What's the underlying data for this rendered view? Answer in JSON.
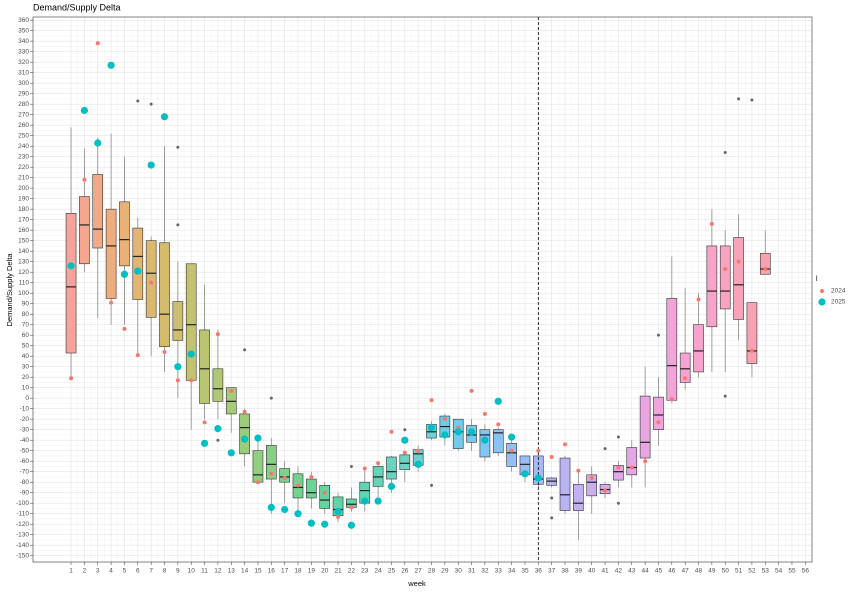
{
  "chart_data": {
    "type": "box",
    "title": "Demand/Supply Delta",
    "x_label": "week",
    "y_label": "Demand/Supply Delta",
    "legend_title": "l",
    "legend_position": "right",
    "grid": true,
    "reference_line_x": 36,
    "x": [
      1,
      2,
      3,
      4,
      5,
      6,
      7,
      8,
      9,
      10,
      11,
      12,
      13,
      14,
      15,
      16,
      17,
      18,
      19,
      20,
      21,
      22,
      23,
      24,
      25,
      26,
      27,
      28,
      29,
      30,
      31,
      32,
      33,
      34,
      35,
      36,
      37,
      38,
      39,
      40,
      41,
      42,
      43,
      44,
      45,
      46,
      47,
      48,
      49,
      50,
      51,
      52,
      53
    ],
    "xlim": [
      -1.85,
      56.5
    ],
    "xticks": [
      1,
      2,
      3,
      4,
      5,
      6,
      7,
      8,
      9,
      10,
      11,
      12,
      13,
      14,
      15,
      16,
      17,
      18,
      19,
      20,
      21,
      22,
      23,
      24,
      25,
      26,
      27,
      28,
      29,
      30,
      31,
      32,
      33,
      34,
      35,
      36,
      37,
      38,
      39,
      40,
      41,
      42,
      43,
      44,
      45,
      46,
      47,
      48,
      49,
      50,
      51,
      52,
      53,
      54,
      55,
      56
    ],
    "ylim": [
      -156,
      363
    ],
    "yticks": [
      -150,
      -140,
      -130,
      -120,
      -110,
      -100,
      -90,
      -80,
      -70,
      -60,
      -50,
      -40,
      -30,
      -20,
      -10,
      0,
      10,
      20,
      30,
      40,
      50,
      60,
      70,
      80,
      90,
      100,
      110,
      120,
      130,
      140,
      150,
      160,
      170,
      180,
      190,
      200,
      210,
      220,
      230,
      240,
      250,
      260,
      270,
      280,
      290,
      300,
      310,
      320,
      330,
      340,
      350,
      360
    ],
    "box": {
      "low": [
        20,
        120,
        76,
        70,
        70,
        40,
        40,
        25,
        0,
        -30,
        -20,
        -20,
        -33,
        -65,
        -80,
        -110,
        -100,
        -110,
        -105,
        -110,
        -118,
        -108,
        -108,
        -95,
        -90,
        -80,
        -70,
        -40,
        -45,
        -50,
        -50,
        -60,
        -55,
        -70,
        -80,
        -85,
        -85,
        -110,
        -135,
        -110,
        -95,
        -85,
        -85,
        -85,
        -45,
        -5,
        8,
        20,
        25,
        25,
        55,
        20,
        118
      ],
      "q1": [
        43,
        128,
        143,
        95,
        126,
        94,
        77,
        49,
        55,
        17,
        -5,
        -3,
        -15,
        -53,
        -80,
        -77,
        -80,
        -95,
        -95,
        -105,
        -112,
        -104,
        -100,
        -84,
        -77,
        -68,
        -64,
        -38,
        -37,
        -48,
        -42,
        -56,
        -52,
        -65,
        -73,
        -82,
        -83,
        -107,
        -107,
        -93,
        -91,
        -78,
        -73,
        -57,
        -30,
        -2,
        15,
        25,
        68,
        85,
        75,
        33,
        118
      ],
      "median": [
        106,
        165,
        161,
        145,
        151,
        135,
        119,
        80,
        65,
        70,
        28,
        9,
        -3,
        -28,
        -73,
        -63,
        -75,
        -85,
        -90,
        -97,
        -106,
        -101,
        -88,
        -75,
        -70,
        -62,
        -53,
        -32,
        -27,
        -32,
        -35,
        -35,
        -33,
        -52,
        -63,
        -77,
        -79,
        -92,
        -100,
        -80,
        -87,
        -70,
        -66,
        -42,
        -16,
        31,
        28,
        45,
        102,
        102,
        108,
        45,
        123
      ],
      "q3": [
        176,
        192,
        213,
        180,
        187,
        162,
        150,
        148,
        92,
        128,
        65,
        28,
        10,
        -15,
        -50,
        -45,
        -67,
        -72,
        -77,
        -83,
        -94,
        -96,
        -80,
        -65,
        -56,
        -54,
        -49,
        -25,
        -17,
        -20,
        -26,
        -30,
        -30,
        -43,
        -55,
        -55,
        -76,
        -57,
        -82,
        -73,
        -82,
        -64,
        -47,
        2,
        1,
        95,
        43,
        70,
        145,
        145,
        153,
        91,
        138
      ],
      "high": [
        258,
        238,
        248,
        252,
        230,
        172,
        154,
        240,
        130,
        128,
        108,
        65,
        10,
        -10,
        -40,
        -38,
        -60,
        -65,
        -70,
        -80,
        -90,
        -85,
        -65,
        -60,
        -55,
        -50,
        -45,
        -22,
        -15,
        -20,
        -20,
        -25,
        -28,
        -40,
        -55,
        -50,
        -75,
        -55,
        -70,
        -65,
        -80,
        -60,
        -40,
        30,
        20,
        135,
        105,
        100,
        180,
        160,
        175,
        91,
        160
      ],
      "outliers": [
        [],
        [],
        [],
        [],
        [],
        [
          283
        ],
        [
          280
        ],
        [],
        [
          239,
          165
        ],
        [],
        [],
        [
          -40
        ],
        [],
        [
          46
        ],
        [],
        [
          0
        ],
        [],
        [],
        [],
        [],
        [],
        [
          -65
        ],
        [],
        [],
        [],
        [
          -30
        ],
        [],
        [
          -83
        ],
        [],
        [],
        [],
        [],
        [],
        [],
        [],
        [],
        [
          -114,
          -95
        ],
        [],
        [],
        [],
        [
          -48
        ],
        [
          -37,
          -100
        ],
        [],
        [],
        [
          60
        ],
        [],
        [],
        [],
        [],
        [
          2,
          234
        ],
        [
          285
        ],
        [
          284
        ],
        []
      ],
      "outlier_color": "#666666",
      "colors": [
        "#f6a49b",
        "#f5a68f",
        "#f2a985",
        "#eead7c",
        "#e9b176",
        "#e3b472",
        "#dcb86f",
        "#d5bb6e",
        "#ccbf6e",
        "#c3c26f",
        "#bac571",
        "#b0c774",
        "#a6ca77",
        "#9ccc7b",
        "#91ce80",
        "#87cf85",
        "#7dd18b",
        "#74d291",
        "#6cd397",
        "#66d49e",
        "#62d4a5",
        "#60d4ab",
        "#61d4b2",
        "#64d3b8",
        "#69d3bf",
        "#6fd2c5",
        "#6dd0cf",
        "#6dcfd9",
        "#6fcde2",
        "#74cbe9",
        "#7bc8ee",
        "#82c5f1",
        "#8ac2f3",
        "#93bff4",
        "#9cbcf4",
        "#a6b9f4",
        "#b0b6f3",
        "#bab3f2",
        "#c3b0f0",
        "#ccaeee",
        "#d5abec",
        "#dca9e9",
        "#e3a7e6",
        "#e9a5e2",
        "#eea4de",
        "#f2a3d9",
        "#f5a3d3",
        "#f7a3ce",
        "#f8a3c8",
        "#f9a3c2",
        "#f9a3bb",
        "#f8a3b4",
        "#f7a3ad"
      ]
    },
    "series": [
      {
        "name": "2024",
        "color": "#f8766d",
        "values": [
          19,
          208,
          338,
          91,
          66,
          41,
          110,
          44,
          17,
          17,
          -23,
          61,
          7,
          -13,
          -80,
          -72,
          -76,
          -83,
          -75,
          -90,
          -113,
          -104,
          -67,
          -62,
          -32,
          -52,
          -50,
          -2,
          -20,
          -28,
          7,
          -15,
          -25,
          -50,
          -73,
          -50,
          -56,
          -44,
          -69,
          -76,
          -88,
          -66,
          -66,
          -60,
          -23,
          -1,
          19,
          94,
          166,
          123,
          130,
          45,
          123
        ]
      },
      {
        "name": "2025",
        "color": "#00bfc4",
        "values": [
          126,
          274,
          243,
          317,
          118,
          121,
          222,
          268,
          30,
          42,
          -43,
          -29,
          -52,
          -39,
          -38,
          -104,
          -106,
          -110,
          -119,
          -120,
          -108,
          -121,
          -98,
          -98,
          -84,
          -40,
          -63,
          -28,
          -35,
          -32,
          -32,
          -40,
          -3,
          -37,
          -72,
          -76,
          null,
          null,
          null,
          null,
          null,
          null,
          null,
          null,
          null,
          null,
          null,
          null,
          null,
          null,
          null,
          null,
          null
        ]
      }
    ]
  }
}
